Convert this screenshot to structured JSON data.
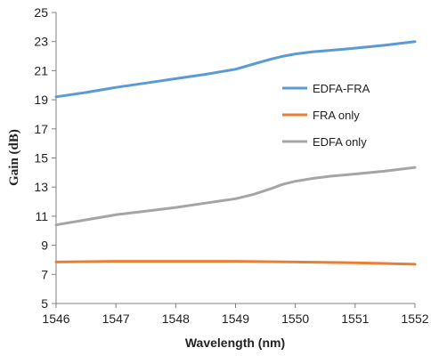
{
  "chart_data": {
    "type": "line",
    "xlabel": "Wavelength (nm)",
    "ylabel": "Gain (dB)",
    "xlim": [
      1546,
      1552
    ],
    "ylim": [
      5,
      25
    ],
    "xticks": [
      1546,
      1547,
      1548,
      1549,
      1550,
      1551,
      1552
    ],
    "yticks": [
      5,
      7,
      9,
      11,
      13,
      15,
      17,
      19,
      21,
      23,
      25
    ],
    "grid": false,
    "legend_position": "right",
    "series": [
      {
        "name": "EDFA-FRA",
        "color": "#5b9bd5",
        "x": [
          1546,
          1546.5,
          1547,
          1547.5,
          1548,
          1548.5,
          1549,
          1549.3,
          1549.6,
          1549.8,
          1550,
          1550.3,
          1550.6,
          1551,
          1551.5,
          1552
        ],
        "y": [
          19.2,
          19.5,
          19.85,
          20.15,
          20.45,
          20.75,
          21.1,
          21.45,
          21.8,
          22.0,
          22.15,
          22.3,
          22.4,
          22.55,
          22.75,
          23.0
        ]
      },
      {
        "name": "FRA only",
        "color": "#ed7d31",
        "x": [
          1546,
          1547,
          1548,
          1549,
          1550,
          1551,
          1552
        ],
        "y": [
          7.85,
          7.9,
          7.9,
          7.9,
          7.85,
          7.8,
          7.7
        ]
      },
      {
        "name": "EDFA only",
        "color": "#a5a5a5",
        "x": [
          1546,
          1546.5,
          1547,
          1547.5,
          1548,
          1548.5,
          1549,
          1549.3,
          1549.6,
          1549.8,
          1550,
          1550.3,
          1550.6,
          1551,
          1551.5,
          1552
        ],
        "y": [
          10.4,
          10.75,
          11.1,
          11.35,
          11.6,
          11.9,
          12.2,
          12.5,
          12.9,
          13.2,
          13.4,
          13.6,
          13.75,
          13.9,
          14.1,
          14.35
        ]
      }
    ]
  }
}
